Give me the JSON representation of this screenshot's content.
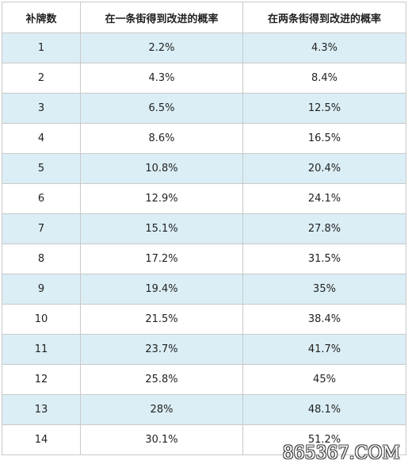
{
  "table": {
    "headers": [
      "补牌数",
      "在一条街得到改进的概率",
      "在两条街得到改进的概率"
    ],
    "rows": [
      [
        "1",
        "2.2%",
        "4.3%"
      ],
      [
        "2",
        "4.3%",
        "8.4%"
      ],
      [
        "3",
        "6.5%",
        "12.5%"
      ],
      [
        "4",
        "8.6%",
        "16.5%"
      ],
      [
        "5",
        "10.8%",
        "20.4%"
      ],
      [
        "6",
        "12.9%",
        "24.1%"
      ],
      [
        "7",
        "15.1%",
        "27.8%"
      ],
      [
        "8",
        "17.2%",
        "31.5%"
      ],
      [
        "9",
        "19.4%",
        "35%"
      ],
      [
        "10",
        "21.5%",
        "38.4%"
      ],
      [
        "11",
        "23.7%",
        "41.7%"
      ],
      [
        "12",
        "25.8%",
        "45%"
      ],
      [
        "13",
        "28%",
        "48.1%"
      ],
      [
        "14",
        "30.1%",
        "51.2%"
      ]
    ]
  },
  "watermark": {
    "text": "865367.COM"
  },
  "colors": {
    "row_alt": "#dbeef5",
    "border": "#c9c9c9"
  }
}
